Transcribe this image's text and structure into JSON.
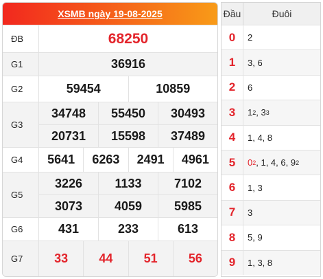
{
  "header": {
    "title": "XSMB ngày 19-08-2025"
  },
  "prizes": {
    "db": {
      "label": "ĐB",
      "values": [
        "68250"
      ]
    },
    "g1": {
      "label": "G1",
      "values": [
        "36916"
      ]
    },
    "g2": {
      "label": "G2",
      "values": [
        "59454",
        "10859"
      ]
    },
    "g3": {
      "label": "G3",
      "values": [
        "34748",
        "55450",
        "30493",
        "20731",
        "15598",
        "37489"
      ]
    },
    "g4": {
      "label": "G4",
      "values": [
        "5641",
        "6263",
        "2491",
        "4961"
      ]
    },
    "g5": {
      "label": "G5",
      "values": [
        "3226",
        "1133",
        "7102",
        "3073",
        "4059",
        "5985"
      ]
    },
    "g6": {
      "label": "G6",
      "values": [
        "431",
        "233",
        "613"
      ]
    },
    "g7": {
      "label": "G7",
      "values": [
        "33",
        "44",
        "51",
        "56"
      ]
    }
  },
  "loto": {
    "head_label": "Đầu",
    "tail_label": "Đuôi",
    "heads": [
      "0",
      "1",
      "2",
      "3",
      "4",
      "5",
      "6",
      "7",
      "8",
      "9"
    ],
    "t0": "2",
    "t1": "3, 6",
    "t2": "6",
    "t3a": "1",
    "t3a_sup": "2",
    "t3sep": ", ",
    "t3b": "3",
    "t3b_sup": "3",
    "t4": "1, 4, 8",
    "t5a": "0",
    "t5a_sup": "2",
    "t5mid": ", 1, 4, 6, ",
    "t5b": "9",
    "t5b_sup": "2",
    "t6": "1, 3",
    "t7": "3",
    "t8": "5, 9",
    "t9": "1, 3, 8"
  },
  "colors": {
    "accent_red": "#e3242b",
    "header_gradient_start": "#f2281e",
    "header_gradient_end": "#f89b18"
  }
}
